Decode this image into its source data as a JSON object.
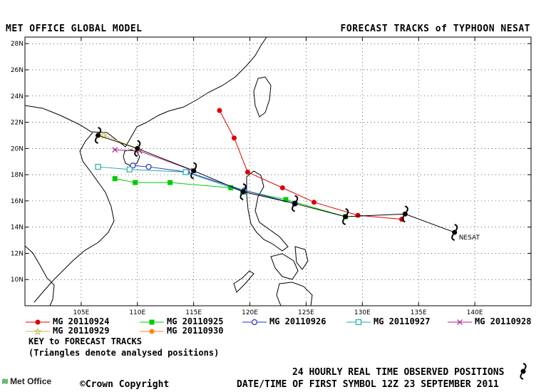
{
  "header": {
    "left": "MET OFFICE GLOBAL MODEL",
    "right": "FORECAST TRACKS of TYPHOON NESAT"
  },
  "map": {
    "lon_range": [
      100,
      145
    ],
    "lat_range": [
      8,
      28.5
    ],
    "lon_ticks": [
      "105E",
      "110E",
      "115E",
      "120E",
      "125E",
      "130E",
      "135E",
      "140E"
    ],
    "lat_ticks": [
      "28N",
      "26N",
      "24N",
      "22N",
      "20N",
      "18N",
      "16N",
      "14N",
      "12N",
      "10N"
    ],
    "storm_label": "NESAT"
  },
  "legend": {
    "tracks": [
      {
        "label": "MG 20110924",
        "color": "#dd0000",
        "marker": "filled-circle"
      },
      {
        "label": "MG 20110925",
        "color": "#00cc00",
        "marker": "filled-square"
      },
      {
        "label": "MG 20110926",
        "color": "#2233bb",
        "marker": "open-circle"
      },
      {
        "label": "MG 20110927",
        "color": "#22aaaa",
        "marker": "open-square"
      },
      {
        "label": "MG 20110928",
        "color": "#aa2288",
        "marker": "cross"
      },
      {
        "label": "MG 20110929",
        "color": "#ccbb44",
        "marker": "star"
      },
      {
        "label": "MG 20110930",
        "color": "#ff8800",
        "marker": "filled-circle"
      }
    ],
    "key_title": "KEY to FORECAST TRACKS",
    "key_note": "(Triangles denote analysed positions)"
  },
  "footer": {
    "logo": "Met Office",
    "copyright": "Crown Copyright",
    "observed": "24 HOURLY REAL TIME OBSERVED POSITIONS",
    "first_symbol": "DATE/TIME OF FIRST SYMBOL 12Z 23 SEPTEMBER 2011"
  },
  "chart_data": {
    "type": "scatter",
    "title": "FORECAST TRACKS of TYPHOON NESAT",
    "observed_track": [
      [
        138.2,
        13.6
      ],
      [
        133.8,
        15.0
      ],
      [
        128.5,
        14.8
      ],
      [
        124.0,
        15.8
      ],
      [
        119.4,
        16.7
      ],
      [
        115.0,
        18.3
      ],
      [
        110.0,
        20.0
      ],
      [
        106.5,
        21.0
      ]
    ],
    "series": [
      {
        "name": "MG 20110924",
        "points": [
          [
            133.5,
            14.6
          ],
          [
            129.6,
            14.9
          ],
          [
            125.7,
            15.9
          ],
          [
            122.9,
            17.0
          ],
          [
            119.8,
            18.2
          ],
          [
            118.6,
            20.8
          ],
          [
            117.3,
            22.9
          ]
        ]
      },
      {
        "name": "MG 20110925",
        "points": [
          [
            128.5,
            14.8
          ],
          [
            123.2,
            16.1
          ],
          [
            118.3,
            17.0
          ],
          [
            112.9,
            17.4
          ],
          [
            109.8,
            17.4
          ],
          [
            108.0,
            17.7
          ]
        ]
      },
      {
        "name": "MG 20110926",
        "points": [
          [
            124.0,
            15.8
          ],
          [
            119.5,
            16.8
          ],
          [
            114.4,
            18.2
          ],
          [
            111.0,
            18.6
          ],
          [
            109.6,
            18.7
          ]
        ]
      },
      {
        "name": "MG 20110927",
        "points": [
          [
            119.4,
            16.7
          ],
          [
            114.3,
            18.2
          ],
          [
            109.3,
            18.4
          ],
          [
            106.5,
            18.6
          ]
        ]
      },
      {
        "name": "MG 20110928",
        "points": [
          [
            115.0,
            18.3
          ],
          [
            110.2,
            19.8
          ],
          [
            108.0,
            19.9
          ]
        ]
      },
      {
        "name": "MG 20110929",
        "points": [
          [
            110.0,
            20.0
          ],
          [
            107.0,
            21.0
          ]
        ]
      },
      {
        "name": "MG 20110930",
        "points": [
          [
            106.5,
            21.0
          ]
        ]
      }
    ]
  }
}
